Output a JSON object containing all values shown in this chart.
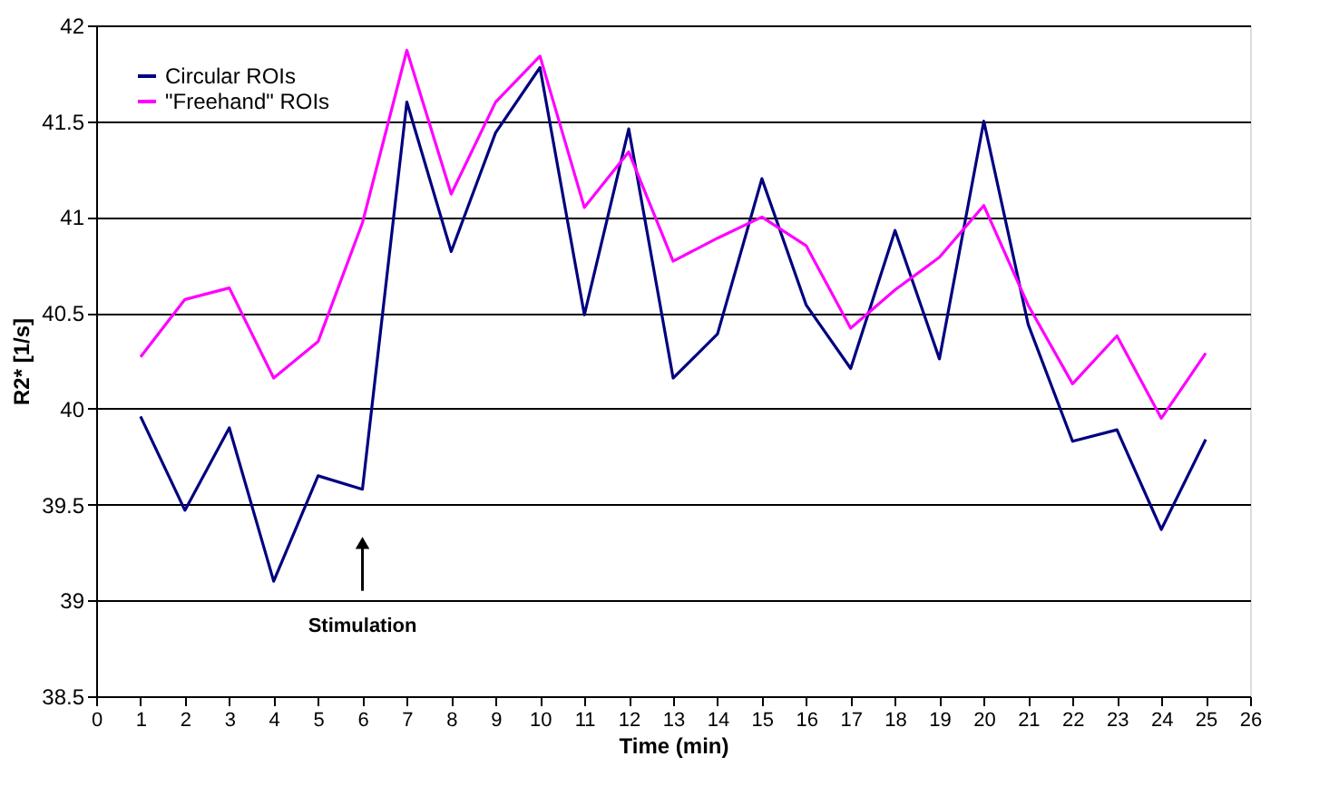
{
  "chart_data": {
    "type": "line",
    "xlabel": "Time (min)",
    "ylabel": "R2* [1/s]",
    "x": [
      1,
      2,
      3,
      4,
      5,
      6,
      7,
      8,
      9,
      10,
      11,
      12,
      13,
      14,
      15,
      16,
      17,
      18,
      19,
      20,
      21,
      22,
      23,
      24,
      25
    ],
    "series": [
      {
        "name": "Circular ROIs",
        "color": "#000080",
        "values": [
          39.96,
          39.47,
          39.9,
          39.1,
          39.65,
          39.58,
          41.6,
          40.82,
          41.44,
          41.78,
          40.49,
          41.46,
          40.16,
          40.39,
          41.2,
          40.54,
          40.21,
          40.93,
          40.26,
          41.5,
          40.44,
          39.83,
          39.89,
          39.37,
          39.84
        ]
      },
      {
        "name": "\"Freehand\" ROIs",
        "color": "#ff00ff",
        "values": [
          40.27,
          40.57,
          40.63,
          40.16,
          40.35,
          40.97,
          41.87,
          41.12,
          41.6,
          41.84,
          41.05,
          41.34,
          40.77,
          40.89,
          41.0,
          40.85,
          40.42,
          40.62,
          40.79,
          41.06,
          40.54,
          40.13,
          40.38,
          39.95,
          40.29
        ]
      }
    ],
    "xlim": [
      0,
      26
    ],
    "xticks": [
      0,
      1,
      2,
      3,
      4,
      5,
      6,
      7,
      8,
      9,
      10,
      11,
      12,
      13,
      14,
      15,
      16,
      17,
      18,
      19,
      20,
      21,
      22,
      23,
      24,
      25,
      26
    ],
    "ylim": [
      38.5,
      42
    ],
    "yticks": [
      38.5,
      39,
      39.5,
      40,
      40.5,
      41,
      41.5,
      42
    ],
    "grid": "y",
    "legend": "top left",
    "marker": "none",
    "line_style": "solid",
    "annotations": [
      {
        "text": "Stimulation",
        "x": 6,
        "y": 39.3
      }
    ]
  }
}
